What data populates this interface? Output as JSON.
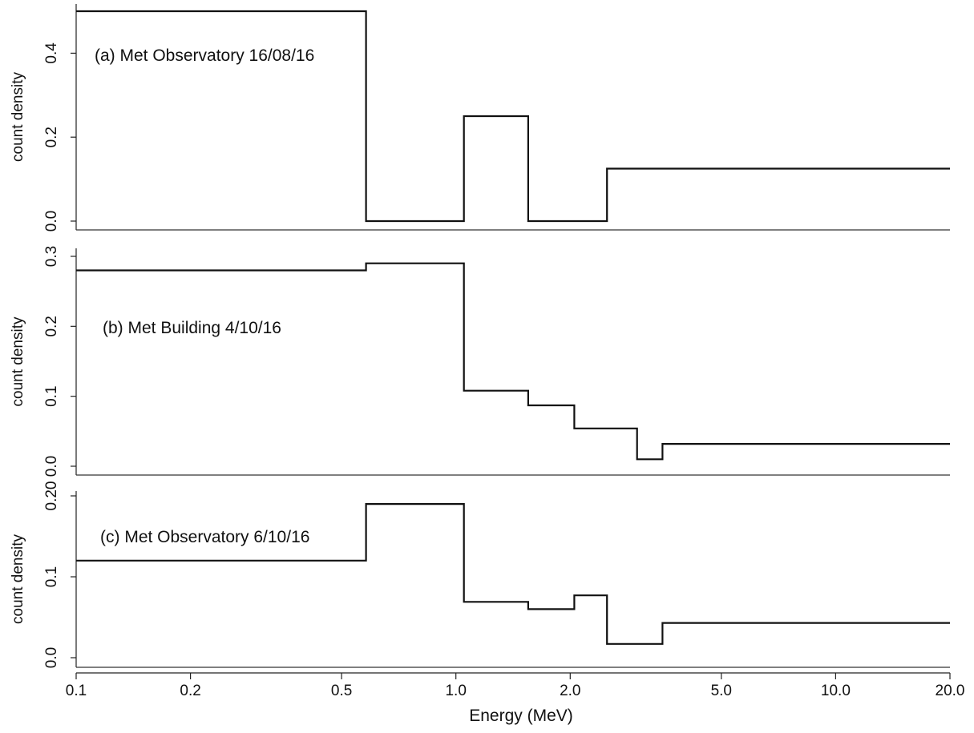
{
  "chart_data": {
    "type": "line",
    "xlabel": "Energy (MeV)",
    "x_scale": "log",
    "xlim": [
      0.1,
      20.0
    ],
    "xticks": [
      {
        "value": 0.1,
        "label": "0.1"
      },
      {
        "value": 0.2,
        "label": "0.2"
      },
      {
        "value": 0.5,
        "label": "0.5"
      },
      {
        "value": 1.0,
        "label": "1.0"
      },
      {
        "value": 2.0,
        "label": "2.0"
      },
      {
        "value": 5.0,
        "label": "5.0"
      },
      {
        "value": 10.0,
        "label": "10.0"
      },
      {
        "value": 20.0,
        "label": "20.0"
      }
    ],
    "bin_edges": [
      0.1,
      0.58,
      1.05,
      1.55,
      2.05,
      2.5,
      3.0,
      3.5,
      20.0
    ],
    "panels": [
      {
        "annotation": "(a) Met Observatory 16/08/16",
        "ylabel": "count density",
        "ylim": [
          0.0,
          0.5
        ],
        "yticks": [
          {
            "value": 0.0,
            "label": "0.0"
          },
          {
            "value": 0.2,
            "label": "0.2"
          },
          {
            "value": 0.4,
            "label": "0.4"
          }
        ],
        "values": [
          0.5,
          0.0,
          0.25,
          0.0,
          0.0,
          0.125,
          0.125,
          0.125
        ]
      },
      {
        "annotation": "(b) Met Building 4/10/16",
        "ylabel": "count density",
        "ylim": [
          0.0,
          0.3
        ],
        "yticks": [
          {
            "value": 0.0,
            "label": "0.0"
          },
          {
            "value": 0.1,
            "label": "0.1"
          },
          {
            "value": 0.2,
            "label": "0.2"
          },
          {
            "value": 0.3,
            "label": "0.3"
          }
        ],
        "values": [
          0.28,
          0.29,
          0.108,
          0.087,
          0.054,
          0.054,
          0.01,
          0.032
        ]
      },
      {
        "annotation": "(c) Met Observatory 6/10/16",
        "ylabel": "count density",
        "ylim": [
          0.0,
          0.2
        ],
        "yticks": [
          {
            "value": 0.0,
            "label": "0.0"
          },
          {
            "value": 0.1,
            "label": "0.1"
          },
          {
            "value": 0.2,
            "label": "0.20"
          }
        ],
        "values": [
          0.12,
          0.19,
          0.069,
          0.06,
          0.077,
          0.017,
          0.017,
          0.043
        ]
      }
    ]
  }
}
